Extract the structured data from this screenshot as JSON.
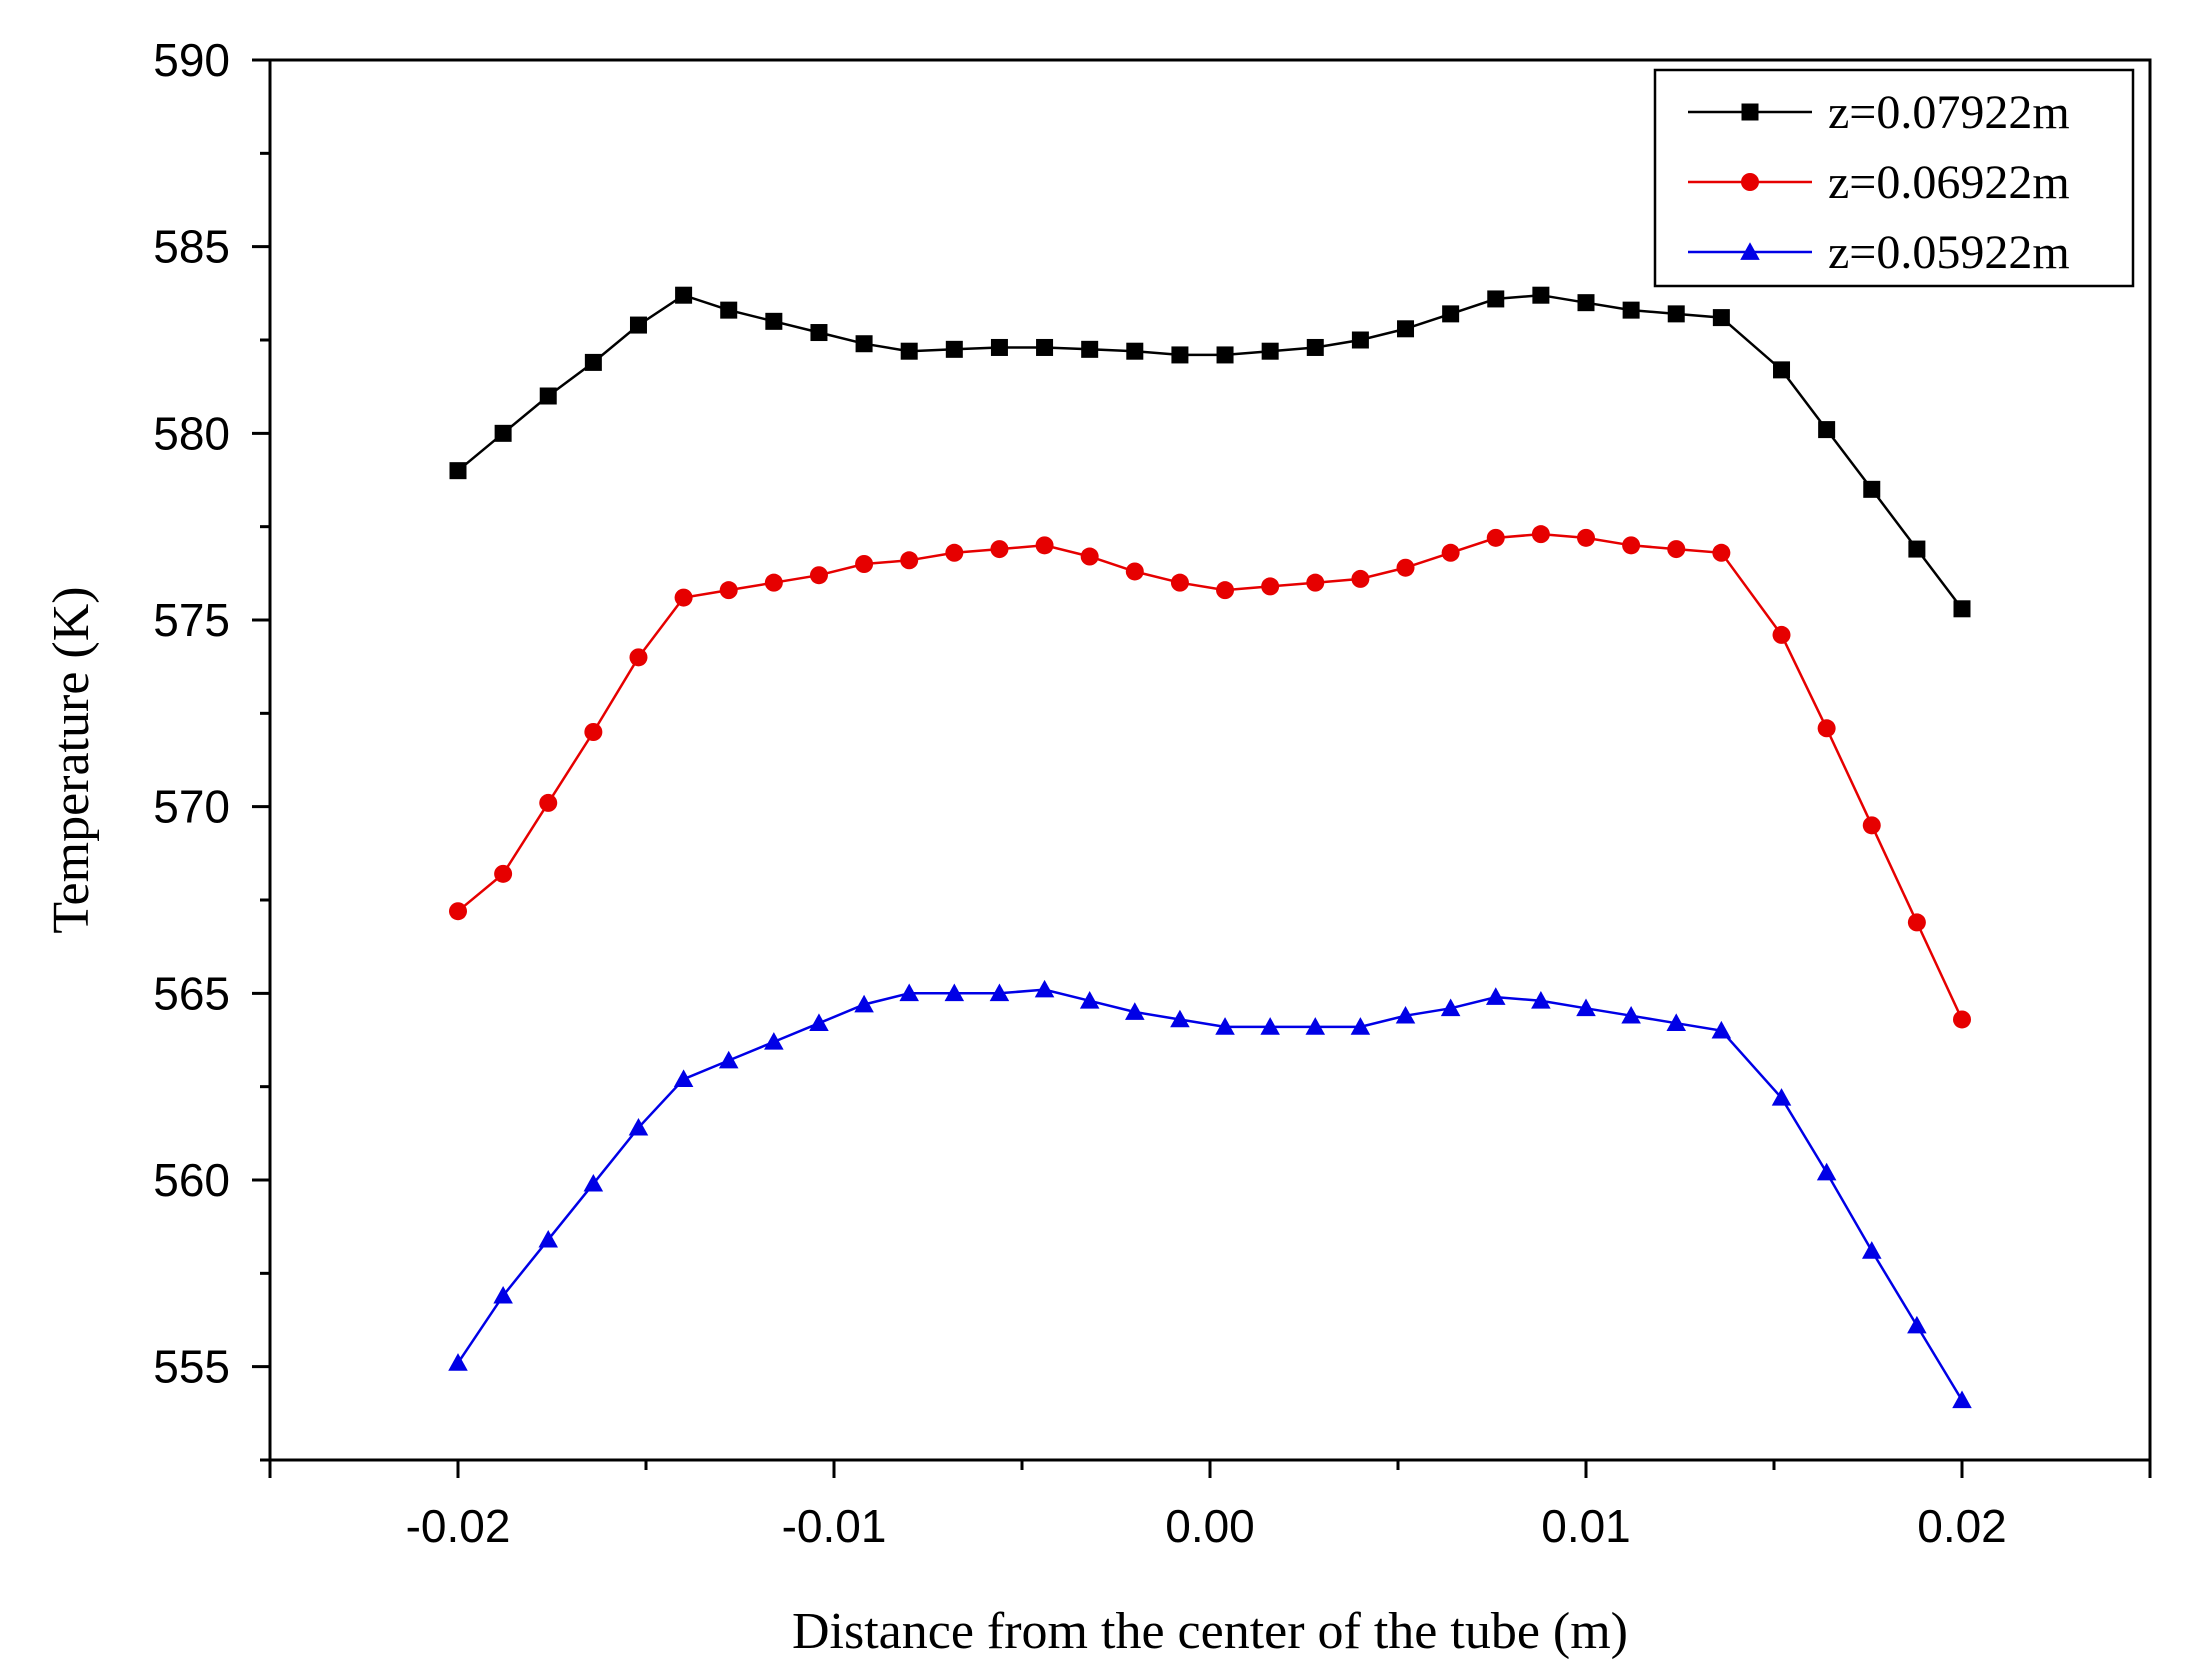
{
  "chart_data": {
    "type": "line",
    "title": "",
    "xlabel": "Distance from the center of the tube (m)",
    "ylabel": "Temperature (K)",
    "xlim": [
      -0.025,
      0.025
    ],
    "ylim": [
      552.5,
      590
    ],
    "x_ticks": [
      -0.02,
      -0.01,
      0.0,
      0.01,
      0.02
    ],
    "x_tick_labels": [
      "-0.02",
      "-0.01",
      "0.00",
      "0.01",
      "0.02"
    ],
    "y_ticks": [
      555,
      560,
      565,
      570,
      575,
      580,
      585,
      590
    ],
    "y_tick_labels": [
      "555",
      "560",
      "565",
      "570",
      "575",
      "580",
      "585",
      "590"
    ],
    "legend_position": "top-right",
    "x": [
      -0.02,
      -0.0188,
      -0.0176,
      -0.0164,
      -0.0152,
      -0.014,
      -0.0128,
      -0.0116,
      -0.0104,
      -0.0092,
      -0.008,
      -0.0068,
      -0.0056,
      -0.0044,
      -0.0032,
      -0.002,
      -0.0008,
      0.0004,
      0.0016,
      0.0028,
      0.004,
      0.0052,
      0.0064,
      0.0076,
      0.0088,
      0.01,
      0.0112,
      0.0124,
      0.0136,
      0.0152,
      0.0164,
      0.0176,
      0.0188,
      0.02
    ],
    "series": [
      {
        "name": "z=0.07922m",
        "color": "#000000",
        "marker": "square",
        "values": [
          579.0,
          580.0,
          581.0,
          581.9,
          582.9,
          583.7,
          583.3,
          583.0,
          582.7,
          582.4,
          582.2,
          582.25,
          582.3,
          582.3,
          582.25,
          582.2,
          582.1,
          582.1,
          582.2,
          582.3,
          582.5,
          582.8,
          583.2,
          583.6,
          583.7,
          583.5,
          583.3,
          583.2,
          583.1,
          581.7,
          580.1,
          578.5,
          576.9,
          575.3
        ]
      },
      {
        "name": "z=0.06922m",
        "color": "#e60000",
        "marker": "circle",
        "values": [
          567.2,
          568.2,
          570.1,
          572.0,
          574.0,
          575.6,
          575.8,
          576.0,
          576.2,
          576.5,
          576.6,
          576.8,
          576.9,
          577.0,
          576.7,
          576.3,
          576.0,
          575.8,
          575.9,
          576.0,
          576.1,
          576.4,
          576.8,
          577.2,
          577.3,
          577.2,
          577.0,
          576.9,
          576.8,
          574.6,
          572.1,
          569.5,
          566.9,
          564.3
        ]
      },
      {
        "name": "z=0.05922m",
        "color": "#0000e6",
        "marker": "triangle",
        "values": [
          555.1,
          556.9,
          558.4,
          559.9,
          561.4,
          562.7,
          563.2,
          563.7,
          564.2,
          564.7,
          565.0,
          565.0,
          565.0,
          565.1,
          564.8,
          564.5,
          564.3,
          564.1,
          564.1,
          564.1,
          564.1,
          564.4,
          564.6,
          564.9,
          564.8,
          564.6,
          564.4,
          564.2,
          564.0,
          562.2,
          560.2,
          558.1,
          556.1,
          554.1
        ]
      }
    ]
  }
}
